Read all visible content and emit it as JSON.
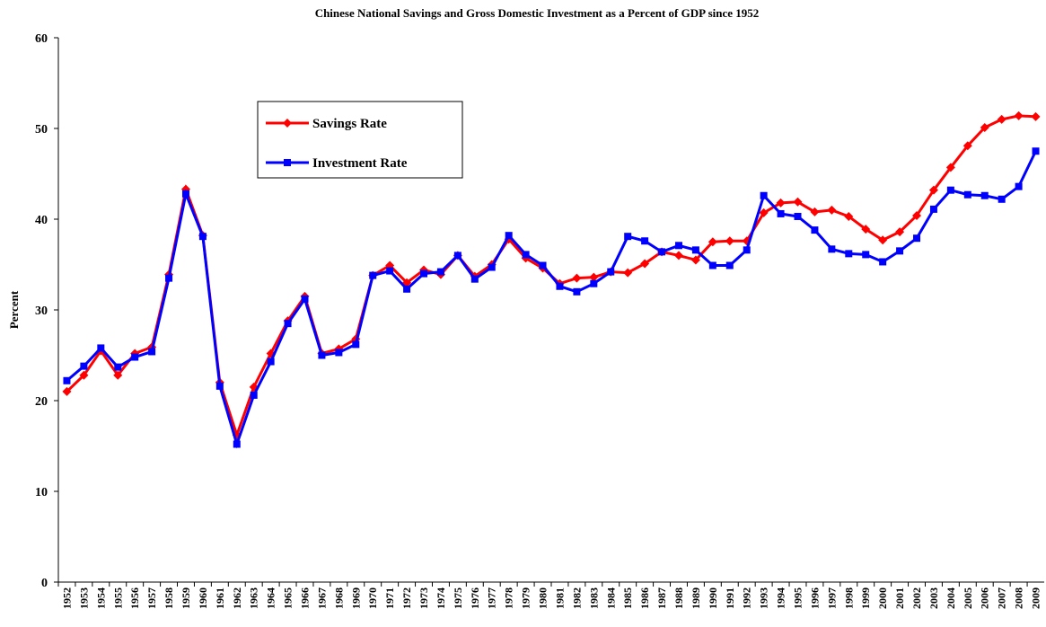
{
  "chart_data": {
    "type": "line",
    "title": "Chinese National Savings and Gross Domestic Investment as a Percent of GDP since 1952",
    "y_label": "Percent",
    "categories": [
      "1952",
      "1953",
      "1954",
      "1955",
      "1956",
      "1957",
      "1958",
      "1959",
      "1960",
      "1961",
      "1962",
      "1963",
      "1964",
      "1965",
      "1966",
      "1967",
      "1968",
      "1969",
      "1970",
      "1971",
      "1972",
      "1973",
      "1974",
      "1975",
      "1976",
      "1977",
      "1978",
      "1979",
      "1980",
      "1981",
      "1982",
      "1983",
      "1984",
      "1985",
      "1986",
      "1987",
      "1988",
      "1989",
      "1990",
      "1991",
      "1992",
      "1993",
      "1994",
      "1995",
      "1996",
      "1997",
      "1998",
      "1999",
      "2000",
      "2001",
      "2002",
      "2003",
      "2004",
      "2005",
      "2006",
      "2007",
      "2008",
      "2009"
    ],
    "series": [
      {
        "name": "Savings Rate",
        "color": "#ff0000",
        "marker": "diamond",
        "values": [
          21.0,
          22.8,
          25.5,
          22.8,
          25.2,
          25.9,
          33.9,
          43.3,
          38.2,
          22.0,
          16.2,
          21.5,
          25.2,
          28.8,
          31.5,
          25.2,
          25.7,
          26.8,
          33.8,
          34.9,
          33.0,
          34.4,
          33.9,
          36.0,
          33.7,
          35.0,
          37.8,
          35.7,
          34.6,
          32.9,
          33.5,
          33.6,
          34.2,
          34.1,
          35.1,
          36.4,
          36.0,
          35.5,
          37.5,
          37.6,
          37.6,
          40.7,
          41.8,
          41.9,
          40.8,
          41.0,
          40.3,
          38.9,
          37.7,
          38.6,
          40.4,
          43.2,
          45.7,
          48.1,
          50.1,
          51.0,
          51.4,
          51.3
        ]
      },
      {
        "name": "Investment Rate",
        "color": "#0000ff",
        "marker": "square",
        "values": [
          22.2,
          23.8,
          25.8,
          23.7,
          24.8,
          25.4,
          33.5,
          42.8,
          38.1,
          21.6,
          15.2,
          20.6,
          24.3,
          28.5,
          31.2,
          25.0,
          25.3,
          26.2,
          33.8,
          34.3,
          32.3,
          34.0,
          34.2,
          36.0,
          33.4,
          34.7,
          38.2,
          36.1,
          34.9,
          32.6,
          32.0,
          32.9,
          34.2,
          38.1,
          37.6,
          36.4,
          37.1,
          36.6,
          34.9,
          34.9,
          36.6,
          42.6,
          40.6,
          40.3,
          38.8,
          36.7,
          36.2,
          36.1,
          35.3,
          36.5,
          37.9,
          41.1,
          43.2,
          42.7,
          42.6,
          42.2,
          43.6,
          47.5
        ]
      }
    ],
    "ylim": [
      0,
      60
    ],
    "yticks": [
      0,
      10,
      20,
      30,
      40,
      50,
      60
    ],
    "grid": false
  }
}
